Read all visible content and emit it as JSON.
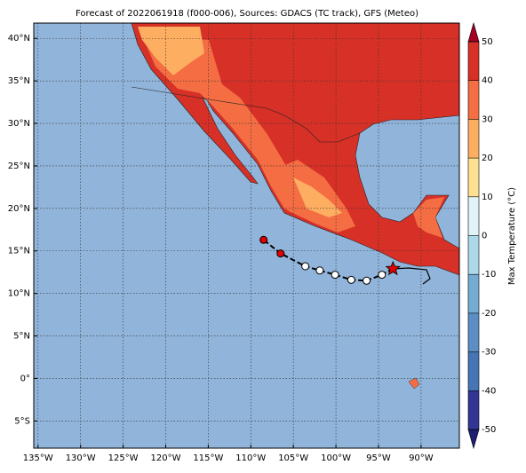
{
  "title": "Forecast of 2022061918 (f000-006), Sources: GDACS (TC track), GFS (Meteo)",
  "map": {
    "xlim": [
      -135.5,
      -85.5
    ],
    "ylim": [
      -8.2,
      41.8
    ],
    "xticks": [
      {
        "value": -135,
        "label": "135°W"
      },
      {
        "value": -130,
        "label": "130°W"
      },
      {
        "value": -125,
        "label": "125°W"
      },
      {
        "value": -120,
        "label": "120°W"
      },
      {
        "value": -115,
        "label": "115°W"
      },
      {
        "value": -110,
        "label": "110°W"
      },
      {
        "value": -105,
        "label": "105°W"
      },
      {
        "value": -100,
        "label": "100°W"
      },
      {
        "value": -95,
        "label": "95°W"
      },
      {
        "value": -90,
        "label": "90°W"
      }
    ],
    "yticks": [
      {
        "value": -5,
        "label": "5°S"
      },
      {
        "value": 0,
        "label": "0°"
      },
      {
        "value": 5,
        "label": "5°N"
      },
      {
        "value": 10,
        "label": "10°N"
      },
      {
        "value": 15,
        "label": "15°N"
      },
      {
        "value": 20,
        "label": "20°N"
      },
      {
        "value": 25,
        "label": "25°N"
      },
      {
        "value": 30,
        "label": "30°N"
      },
      {
        "value": 35,
        "label": "35°N"
      },
      {
        "value": 40,
        "label": "40°N"
      }
    ],
    "grid": true
  },
  "track": {
    "lon": [
      -93.3,
      -94.6,
      -96.4,
      -98.2,
      -100.1,
      -101.9,
      -103.6,
      -106.5,
      -108.5
    ],
    "lat": [
      12.9,
      12.2,
      11.5,
      11.6,
      12.2,
      12.7,
      13.2,
      14.7,
      16.3
    ]
  },
  "colorbar": {
    "label": "Max Temperature (°C)",
    "lim": [
      -50,
      50
    ],
    "ticks": [
      -50,
      -40,
      -30,
      -20,
      -10,
      0,
      10,
      20,
      30,
      40,
      50
    ],
    "colors": [
      "#313695",
      "#4575b4",
      "#5b8ec4",
      "#74add1",
      "#abd9e9",
      "#e0f3f8",
      "#fee090",
      "#fdae61",
      "#f46d43",
      "#d73027"
    ]
  }
}
